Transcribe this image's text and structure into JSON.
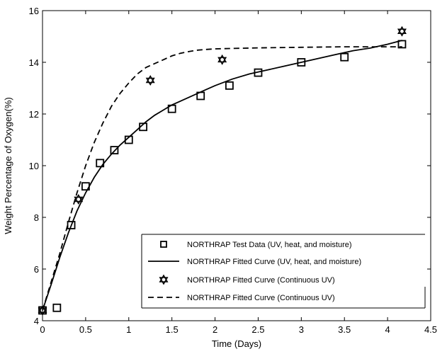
{
  "chart_data": {
    "type": "line",
    "xlabel": "Time (Days)",
    "ylabel": "Weight Percentage of Oxygen(%)",
    "xlim": [
      0,
      4.5
    ],
    "ylim": [
      4,
      16
    ],
    "x_ticks": [
      0,
      0.5,
      1,
      1.5,
      2,
      2.5,
      3,
      3.5,
      4,
      4.5
    ],
    "y_ticks": [
      4,
      6,
      8,
      10,
      12,
      14,
      16
    ],
    "x_tick_labels": [
      "0",
      "0.5",
      "1",
      "1.5",
      "2",
      "2.5",
      "3",
      "3.5",
      "4",
      "4.5"
    ],
    "y_tick_labels": [
      "4",
      "6",
      "8",
      "10",
      "12",
      "14",
      "16"
    ],
    "grid": false,
    "legend_position": "bottom-right",
    "series": [
      {
        "name": "NORTHRAP Test Data (UV, heat, and moisture)",
        "kind": "scatter",
        "marker": "square",
        "x": [
          0,
          0.167,
          0.333,
          0.5,
          0.667,
          0.833,
          1.0,
          1.167,
          1.5,
          1.833,
          2.167,
          2.5,
          3.0,
          3.5,
          4.167
        ],
        "y": [
          4.4,
          4.5,
          7.7,
          9.2,
          10.1,
          10.6,
          11.0,
          11.5,
          12.2,
          12.7,
          13.1,
          13.6,
          14.0,
          14.2,
          14.7
        ]
      },
      {
        "name": "NORTHRAP Fitted Curve (UV, heat, and moisture)",
        "kind": "line",
        "dash": "solid",
        "x": [
          0,
          0.1,
          0.2,
          0.3,
          0.4,
          0.5,
          0.6,
          0.7,
          0.8,
          0.9,
          1.0,
          1.1,
          1.2,
          1.3,
          1.4,
          1.5,
          1.6,
          1.7,
          1.8,
          1.9,
          2.0,
          2.2,
          2.4,
          2.6,
          2.8,
          3.0,
          3.2,
          3.4,
          3.6,
          3.8,
          4.0,
          4.17
        ],
        "y": [
          4.4,
          5.4,
          6.45,
          7.4,
          8.25,
          8.95,
          9.55,
          10.05,
          10.45,
          10.8,
          11.1,
          11.4,
          11.7,
          11.95,
          12.15,
          12.35,
          12.5,
          12.65,
          12.8,
          12.95,
          13.1,
          13.35,
          13.55,
          13.7,
          13.85,
          14.0,
          14.15,
          14.3,
          14.45,
          14.55,
          14.7,
          14.85
        ]
      },
      {
        "name": "NORTHRAP Fitted Curve (Continuous UV)",
        "kind": "scatter",
        "marker": "star",
        "x": [
          0,
          0.417,
          1.25,
          2.083,
          4.167
        ],
        "y": [
          4.4,
          8.7,
          13.3,
          14.1,
          15.2
        ]
      },
      {
        "name": "NORTHRAP Fitted Curve (Continuous UV)",
        "kind": "line",
        "dash": "dashed",
        "x": [
          0,
          0.1,
          0.2,
          0.3,
          0.4,
          0.5,
          0.6,
          0.7,
          0.8,
          0.9,
          1.0,
          1.1,
          1.2,
          1.3,
          1.4,
          1.5,
          1.6,
          1.7,
          1.8,
          1.9,
          2.0,
          2.5,
          3.0,
          3.5,
          4.0,
          4.17
        ],
        "y": [
          4.4,
          5.5,
          6.6,
          7.8,
          8.95,
          10.0,
          10.9,
          11.65,
          12.3,
          12.8,
          13.2,
          13.55,
          13.8,
          13.95,
          14.1,
          14.25,
          14.35,
          14.42,
          14.47,
          14.5,
          14.52,
          14.56,
          14.58,
          14.6,
          14.6,
          14.6
        ]
      }
    ]
  }
}
